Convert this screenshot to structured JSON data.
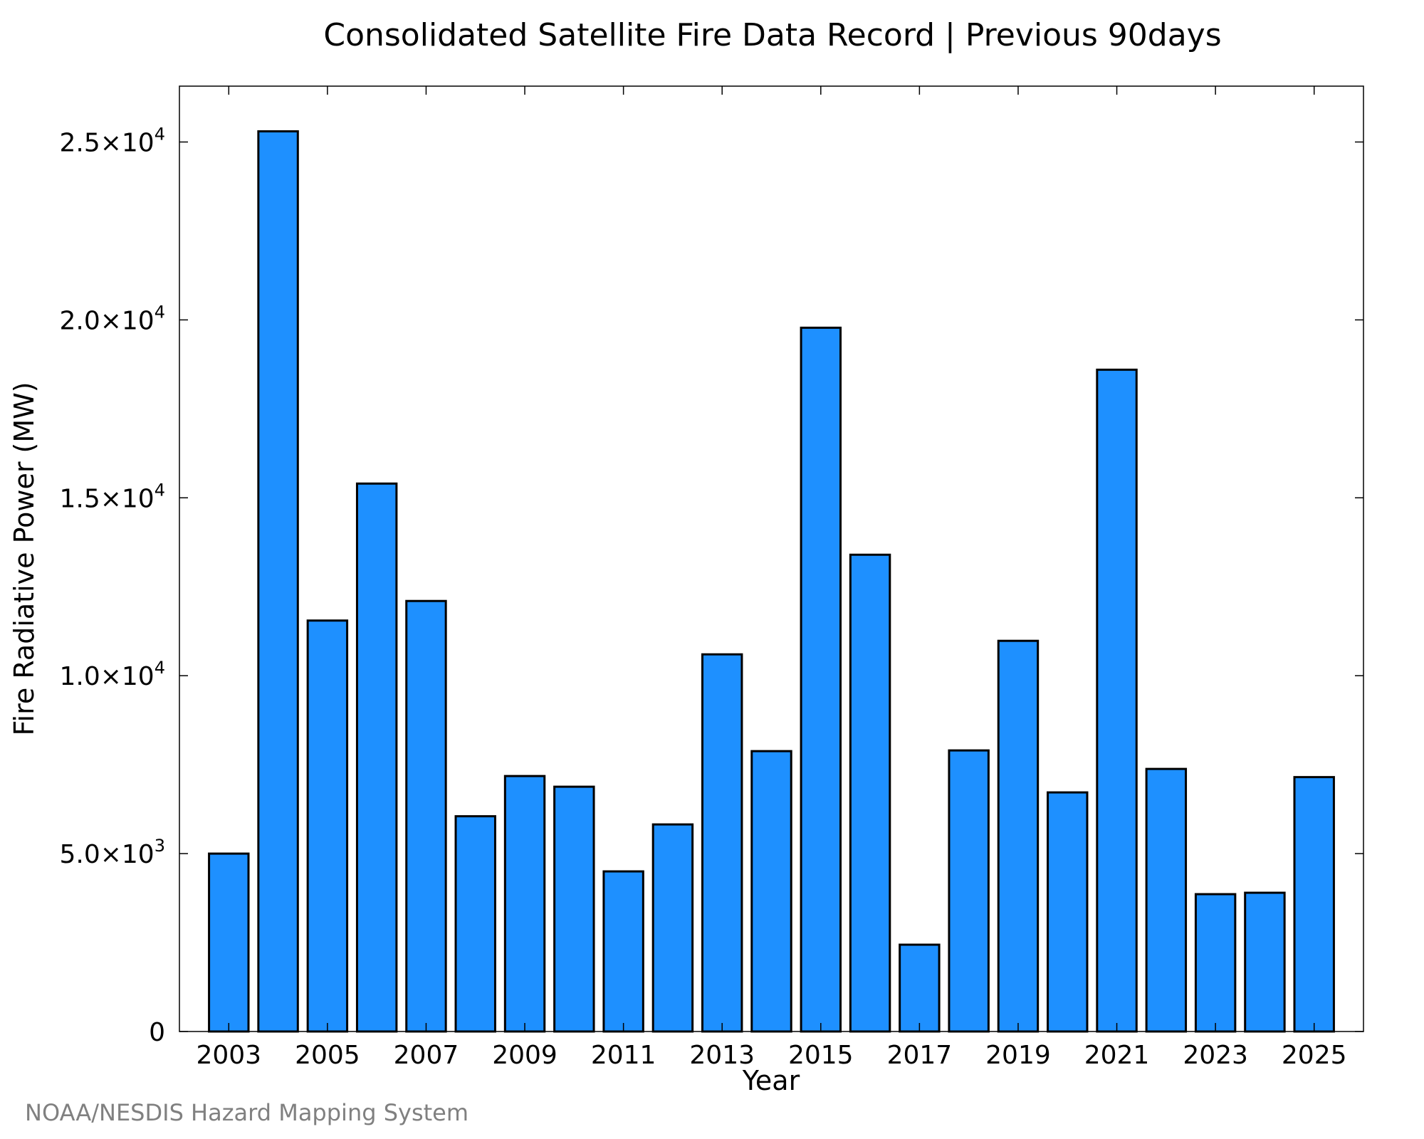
{
  "chart_data": {
    "type": "bar",
    "title": "Consolidated Satellite Fire Data Record | Previous 90days",
    "xlabel": "Year",
    "ylabel": "Fire Radiative Power (MW)",
    "credit": "NOAA/NESDIS Hazard Mapping System",
    "categories": [
      2003,
      2004,
      2005,
      2006,
      2007,
      2008,
      2009,
      2010,
      2011,
      2012,
      2013,
      2014,
      2015,
      2016,
      2017,
      2018,
      2019,
      2020,
      2021,
      2022,
      2023,
      2024,
      2025
    ],
    "values": [
      5000,
      25300,
      11550,
      15400,
      12100,
      6050,
      7180,
      6880,
      4500,
      5820,
      10600,
      7880,
      19780,
      13400,
      2440,
      7900,
      10980,
      6720,
      18600,
      7380,
      3860,
      3900,
      7150
    ],
    "x_tick_labels": [
      "2003",
      "2005",
      "2007",
      "2009",
      "2011",
      "2013",
      "2015",
      "2017",
      "2019",
      "2021",
      "2023",
      "2025"
    ],
    "y_ticks": [
      {
        "value": 0,
        "mantissa": "0",
        "exp": ""
      },
      {
        "value": 5000,
        "mantissa": "5.0×10",
        "exp": "3"
      },
      {
        "value": 10000,
        "mantissa": "1.0×10",
        "exp": "4"
      },
      {
        "value": 15000,
        "mantissa": "1.5×10",
        "exp": "4"
      },
      {
        "value": 20000,
        "mantissa": "2.0×10",
        "exp": "4"
      },
      {
        "value": 25000,
        "mantissa": "2.5×10",
        "exp": "4"
      }
    ],
    "xlim": [
      2002.0,
      2026.0
    ],
    "ylim": [
      0,
      26570
    ],
    "bar_color": "#1e90ff",
    "edge_color": "#000000",
    "grid": false
  }
}
